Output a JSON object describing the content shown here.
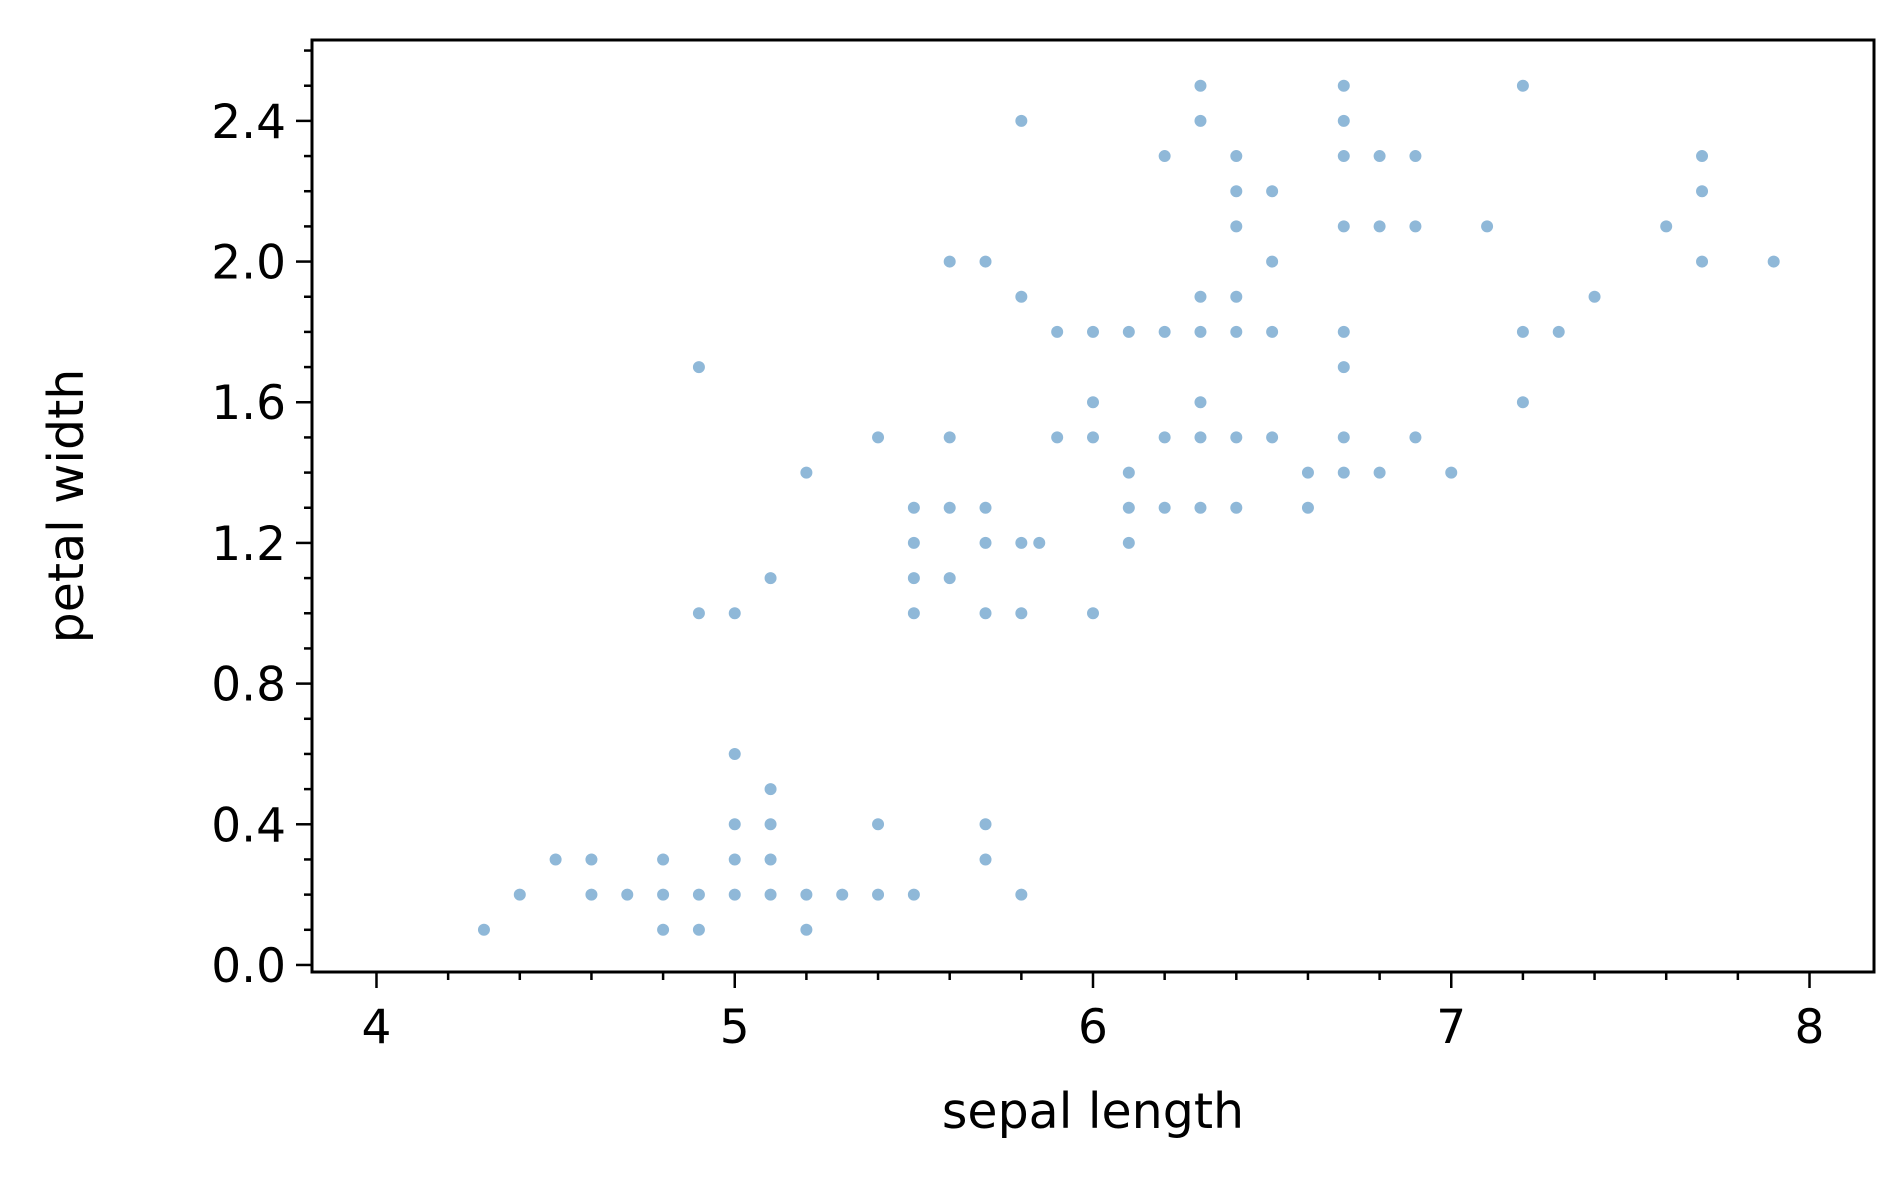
{
  "chart_data": {
    "type": "scatter",
    "title": "",
    "xlabel": "sepal length",
    "ylabel": "petal width",
    "xlim": [
      3.82,
      8.18
    ],
    "ylim": [
      -0.02,
      2.63
    ],
    "x_ticks": [
      4,
      5,
      6,
      7,
      8
    ],
    "x_tick_labels": [
      "4",
      "5",
      "6",
      "7",
      "8"
    ],
    "y_ticks": [
      0.0,
      0.4,
      0.8,
      1.2,
      1.6,
      2.0,
      2.4
    ],
    "y_tick_labels": [
      "0.0",
      "0.4",
      "0.8",
      "1.2",
      "1.6",
      "2.0",
      "2.4"
    ],
    "x_minor_step": 0.2,
    "y_minor_step": 0.1,
    "grid": false,
    "legend": "none",
    "marker_color": "#8fb8d8",
    "points": [
      [
        4.3,
        0.1
      ],
      [
        4.4,
        0.2
      ],
      [
        4.5,
        0.3
      ],
      [
        4.6,
        0.3
      ],
      [
        4.6,
        0.2
      ],
      [
        4.7,
        0.2
      ],
      [
        4.8,
        0.3
      ],
      [
        4.8,
        0.2
      ],
      [
        4.8,
        0.1
      ],
      [
        4.9,
        0.2
      ],
      [
        4.9,
        0.1
      ],
      [
        4.9,
        1.0
      ],
      [
        4.9,
        1.7
      ],
      [
        5.0,
        0.6
      ],
      [
        5.0,
        0.4
      ],
      [
        5.0,
        0.3
      ],
      [
        5.0,
        0.2
      ],
      [
        5.0,
        1.0
      ],
      [
        5.1,
        0.5
      ],
      [
        5.1,
        0.4
      ],
      [
        5.1,
        0.3
      ],
      [
        5.1,
        0.2
      ],
      [
        5.1,
        1.1
      ],
      [
        5.2,
        0.2
      ],
      [
        5.2,
        0.1
      ],
      [
        5.2,
        1.4
      ],
      [
        5.3,
        0.2
      ],
      [
        5.4,
        0.4
      ],
      [
        5.4,
        0.2
      ],
      [
        5.4,
        1.5
      ],
      [
        5.5,
        0.2
      ],
      [
        5.5,
        1.3
      ],
      [
        5.5,
        1.2
      ],
      [
        5.5,
        1.1
      ],
      [
        5.5,
        1.0
      ],
      [
        5.6,
        2.0
      ],
      [
        5.6,
        1.5
      ],
      [
        5.6,
        1.3
      ],
      [
        5.6,
        1.1
      ],
      [
        5.7,
        2.0
      ],
      [
        5.7,
        1.3
      ],
      [
        5.7,
        1.2
      ],
      [
        5.7,
        1.0
      ],
      [
        5.7,
        0.4
      ],
      [
        5.7,
        0.3
      ],
      [
        5.8,
        2.4
      ],
      [
        5.8,
        1.9
      ],
      [
        5.8,
        1.2
      ],
      [
        5.8,
        1.0
      ],
      [
        5.8,
        0.2
      ],
      [
        5.85,
        1.2
      ],
      [
        5.9,
        1.8
      ],
      [
        5.9,
        1.5
      ],
      [
        6.0,
        1.8
      ],
      [
        6.0,
        1.6
      ],
      [
        6.0,
        1.5
      ],
      [
        6.0,
        1.0
      ],
      [
        6.1,
        1.8
      ],
      [
        6.1,
        1.4
      ],
      [
        6.1,
        1.3
      ],
      [
        6.1,
        1.2
      ],
      [
        6.2,
        2.3
      ],
      [
        6.2,
        1.8
      ],
      [
        6.2,
        1.5
      ],
      [
        6.2,
        1.3
      ],
      [
        6.3,
        2.5
      ],
      [
        6.3,
        2.4
      ],
      [
        6.3,
        1.9
      ],
      [
        6.3,
        1.8
      ],
      [
        6.3,
        1.6
      ],
      [
        6.3,
        1.5
      ],
      [
        6.3,
        1.3
      ],
      [
        6.4,
        2.3
      ],
      [
        6.4,
        2.2
      ],
      [
        6.4,
        2.1
      ],
      [
        6.4,
        1.9
      ],
      [
        6.4,
        1.8
      ],
      [
        6.4,
        1.5
      ],
      [
        6.4,
        1.3
      ],
      [
        6.5,
        2.2
      ],
      [
        6.5,
        2.0
      ],
      [
        6.5,
        1.8
      ],
      [
        6.5,
        1.5
      ],
      [
        6.6,
        1.4
      ],
      [
        6.6,
        1.3
      ],
      [
        6.7,
        2.5
      ],
      [
        6.7,
        2.4
      ],
      [
        6.7,
        2.3
      ],
      [
        6.7,
        2.1
      ],
      [
        6.7,
        1.8
      ],
      [
        6.7,
        1.7
      ],
      [
        6.7,
        1.5
      ],
      [
        6.7,
        1.4
      ],
      [
        6.8,
        2.3
      ],
      [
        6.8,
        2.1
      ],
      [
        6.8,
        1.4
      ],
      [
        6.9,
        2.3
      ],
      [
        6.9,
        2.1
      ],
      [
        6.9,
        1.5
      ],
      [
        7.0,
        1.4
      ],
      [
        7.1,
        2.1
      ],
      [
        7.2,
        2.5
      ],
      [
        7.2,
        1.8
      ],
      [
        7.2,
        1.6
      ],
      [
        7.3,
        1.8
      ],
      [
        7.4,
        1.9
      ],
      [
        7.6,
        2.1
      ],
      [
        7.7,
        2.3
      ],
      [
        7.7,
        2.2
      ],
      [
        7.7,
        2.0
      ],
      [
        7.9,
        2.0
      ]
    ]
  }
}
